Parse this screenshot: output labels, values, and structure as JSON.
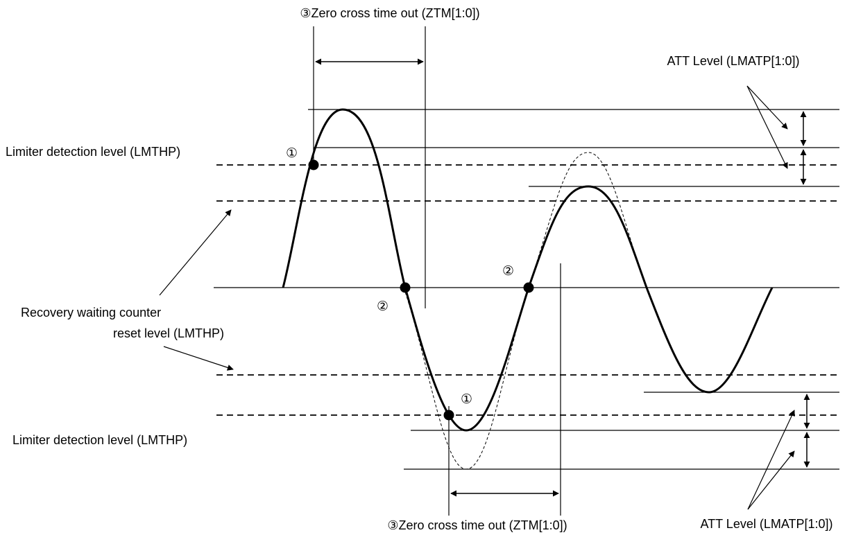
{
  "labels": {
    "zero_cross_top": "③Zero cross time out (ZTM[1:0])",
    "zero_cross_bottom": "③Zero cross time out (ZTM[1:0])",
    "att_level_top": "ATT Level (LMATP[1:0])",
    "att_level_bottom": "ATT Level (LMATP[1:0])",
    "limiter_detection_top": "Limiter detection level (LMTHP)",
    "limiter_detection_bottom": "Limiter detection level (LMTHP)",
    "recovery_line1": "Recovery waiting counter",
    "recovery_line2": "reset level (LMTHP)"
  },
  "markers": {
    "m1_top": "①",
    "m1_bottom": "①",
    "m2_left": "②",
    "m2_right": "②"
  }
}
